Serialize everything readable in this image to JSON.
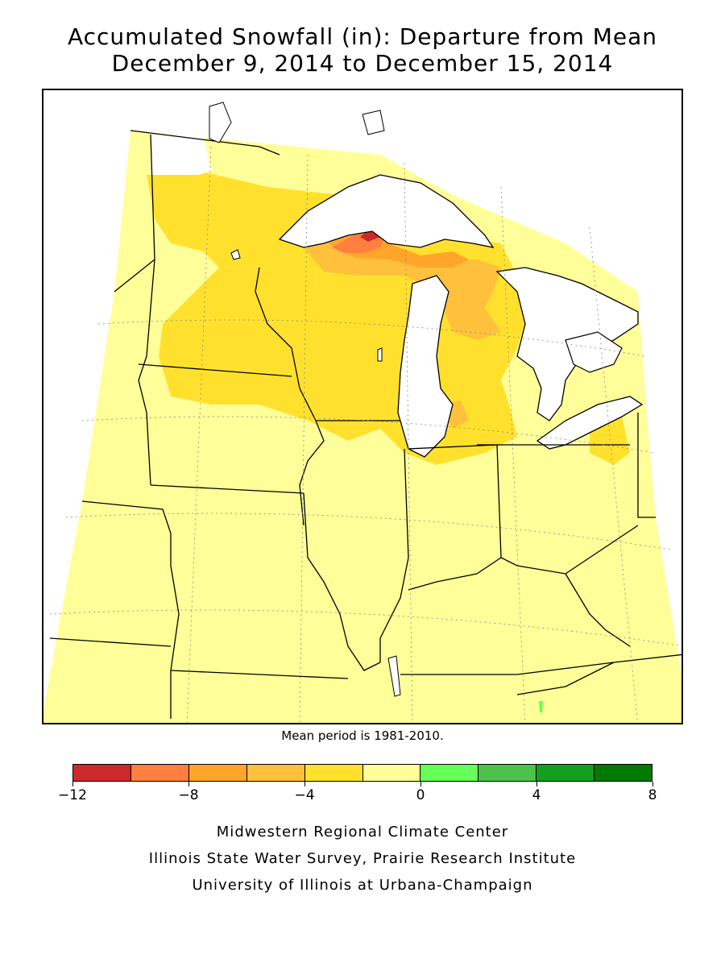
{
  "title_line1": "Accumulated Snowfall (in): Departure from Mean",
  "title_line2": "December 9, 2014 to December 15, 2014",
  "mean_note": "Mean period is 1981-2010.",
  "legend": {
    "colors": [
      "#cc2a2a",
      "#ff7f3f",
      "#ffa52a",
      "#ffc03c",
      "#ffe12d",
      "#ffff99",
      "#66ff5a",
      "#4cc24a",
      "#14a01e",
      "#007a00"
    ],
    "ticks": [
      "−12",
      "−8",
      "−4",
      "0",
      "4",
      "8"
    ]
  },
  "credits": {
    "line1": "Midwestern Regional Climate Center",
    "line2": "Illinois State Water Survey, Prairie Research Institute",
    "line3": "University of Illinois at Urbana-Champaign"
  },
  "map": {
    "background_color": "#ffff99",
    "lake_color": "#ffffff",
    "deficit_color_2_4": "#ffe12d",
    "deficit_color_4_6": "#ffc03c",
    "deficit_color_6_8": "#ffa52a",
    "deficit_color_8_10": "#ff7f3f",
    "deficit_color_10_12": "#cc2a2a",
    "surplus_color_0_2": "#66ff5a"
  }
}
